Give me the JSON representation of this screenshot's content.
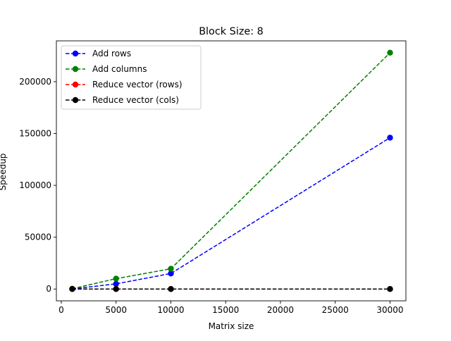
{
  "chart_data": {
    "type": "line",
    "title": "Block Size: 8",
    "xlabel": "Matrix size",
    "ylabel": "Speedup",
    "x": [
      1000,
      5000,
      10000,
      30000
    ],
    "xlim": [
      -450,
      31450
    ],
    "ylim": [
      -11400,
      239400
    ],
    "xticks": [
      0,
      5000,
      10000,
      15000,
      20000,
      25000,
      30000
    ],
    "xtick_labels": [
      "0",
      "5000",
      "10000",
      "15000",
      "20000",
      "25000",
      "30000"
    ],
    "yticks": [
      0,
      50000,
      100000,
      150000,
      200000
    ],
    "ytick_labels": [
      "0",
      "50000",
      "100000",
      "150000",
      "200000"
    ],
    "grid": false,
    "legend_position": "upper-left",
    "series": [
      {
        "name": "Add rows",
        "color": "#0000ff",
        "linestyle": "dashed",
        "marker": "circle",
        "values": [
          100,
          5000,
          15000,
          146000
        ]
      },
      {
        "name": "Add columns",
        "color": "#008000",
        "linestyle": "dashed",
        "marker": "circle",
        "values": [
          300,
          10000,
          19500,
          228000
        ]
      },
      {
        "name": "Reduce vector (rows)",
        "color": "#ff0000",
        "linestyle": "dashed",
        "marker": "circle",
        "values": [
          1,
          1,
          1,
          1
        ]
      },
      {
        "name": "Reduce vector (cols)",
        "color": "#000000",
        "linestyle": "dashed",
        "marker": "circle",
        "values": [
          1,
          1,
          1,
          1
        ]
      }
    ]
  }
}
